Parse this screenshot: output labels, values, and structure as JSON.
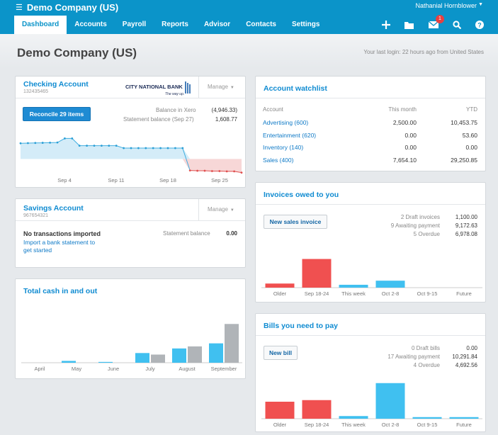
{
  "topbar": {
    "app_title": "Demo Company (US)",
    "user_name": "Nathanial Hornblower",
    "notif_count": "1"
  },
  "nav": [
    "Dashboard",
    "Accounts",
    "Payroll",
    "Reports",
    "Advisor",
    "Contacts",
    "Settings"
  ],
  "header": {
    "org_title": "Demo Company (US)",
    "last_login": "Your last login: 22 hours ago from United States"
  },
  "checking": {
    "title": "Checking Account",
    "number": "132435465",
    "bank_name": "CITY NATIONAL BANK",
    "bank_tagline": "The way up.",
    "manage": "Manage",
    "reconcile": "Reconcile 29 items",
    "bal_xero_label": "Balance in Xero",
    "bal_xero": "(4,946.33)",
    "stmt_label": "Statement balance (Sep 27)",
    "stmt_value": "1,608.77",
    "axis": [
      "Sep 4",
      "Sep 11",
      "Sep 18",
      "Sep 25"
    ]
  },
  "savings": {
    "title": "Savings Account",
    "number": "967654321",
    "manage": "Manage",
    "no_tx": "No transactions imported",
    "import_line1": "Import a bank statement to",
    "import_line2": "get started",
    "stmt_label": "Statement balance",
    "stmt_value": "0.00"
  },
  "cash": {
    "title": "Total cash in and out"
  },
  "watchlist": {
    "title": "Account watchlist",
    "cols": [
      "Account",
      "This month",
      "YTD"
    ],
    "rows": [
      {
        "name": "Advertising (600)",
        "month": "2,500.00",
        "ytd": "10,453.75"
      },
      {
        "name": "Entertainment (620)",
        "month": "0.00",
        "ytd": "53.60"
      },
      {
        "name": "Inventory (140)",
        "month": "0.00",
        "ytd": "0.00"
      },
      {
        "name": "Sales (400)",
        "month": "7,654.10",
        "ytd": "29,250.85"
      }
    ]
  },
  "invoices": {
    "title": "Invoices owed to you",
    "button": "New sales invoice",
    "stats": [
      {
        "label": "2 Draft invoices",
        "value": "1,100.00"
      },
      {
        "label": "9 Awaiting payment",
        "value": "9,172.63"
      },
      {
        "label": "5 Overdue",
        "value": "6,978.08"
      }
    ]
  },
  "bills": {
    "title": "Bills you need to pay",
    "button": "New bill",
    "stats": [
      {
        "label": "0 Draft bills",
        "value": "0.00"
      },
      {
        "label": "17 Awaiting payment",
        "value": "10,291.84"
      },
      {
        "label": "4 Overdue",
        "value": "4,692.56"
      }
    ]
  },
  "colors": {
    "accent": "#0b94c9",
    "blue_bar": "#40c0f0",
    "red_bar": "#f05050",
    "gray_bar": "#b0b4b8",
    "balance_fill": "#d4ecf8",
    "negative_fill": "#f7d7d7"
  },
  "chart_data": [
    {
      "type": "line",
      "title": "Checking Account",
      "x": [
        "Aug 28",
        "Aug 29",
        "Aug 30",
        "Aug 31",
        "Sep 1",
        "Sep 2",
        "Sep 3",
        "Sep 4",
        "Sep 5",
        "Sep 6",
        "Sep 7",
        "Sep 8",
        "Sep 9",
        "Sep 10",
        "Sep 11",
        "Sep 12",
        "Sep 13",
        "Sep 14",
        "Sep 15",
        "Sep 16",
        "Sep 17",
        "Sep 18",
        "Sep 19",
        "Sep 20",
        "Sep 21",
        "Sep 22",
        "Sep 23",
        "Sep 24",
        "Sep 25",
        "Sep 26",
        "Sep 27"
      ],
      "categories": [
        "Sep 4",
        "Sep 11",
        "Sep 18",
        "Sep 25"
      ],
      "values": [
        5200,
        5250,
        5300,
        5350,
        5400,
        5450,
        6800,
        6800,
        4400,
        4400,
        4400,
        4400,
        4400,
        4400,
        3600,
        3600,
        3600,
        3600,
        3600,
        3600,
        3600,
        3600,
        3600,
        -3800,
        -3900,
        -3900,
        -4000,
        -4000,
        -4100,
        -4100,
        -4500
      ],
      "ylim": [
        -6000,
        9000
      ]
    },
    {
      "type": "bar",
      "title": "Total cash in and out",
      "categories": [
        "April",
        "May",
        "June",
        "July",
        "August",
        "September"
      ],
      "series": [
        {
          "values": [
            0,
            1800,
            800,
            9500,
            14000,
            19000
          ]
        },
        {
          "values": [
            0,
            0,
            0,
            8000,
            16000,
            38000
          ]
        }
      ],
      "ylim": [
        0,
        50000
      ]
    },
    {
      "type": "bar",
      "title": "Invoices owed to you",
      "categories": [
        "Older",
        "Sep 18-24",
        "This week",
        "Oct 2-8",
        "Oct 9-15",
        "Future"
      ],
      "values": [
        1000,
        7000,
        700,
        1700,
        0,
        0
      ],
      "ylim": [
        0,
        9000
      ]
    },
    {
      "type": "bar",
      "title": "Bills you need to pay",
      "categories": [
        "Older",
        "Sep 18-24",
        "This week",
        "Oct 2-8",
        "Oct 9-15",
        "Future"
      ],
      "values": [
        3200,
        3500,
        500,
        6700,
        300,
        300
      ],
      "ylim": [
        0,
        8000
      ]
    }
  ]
}
